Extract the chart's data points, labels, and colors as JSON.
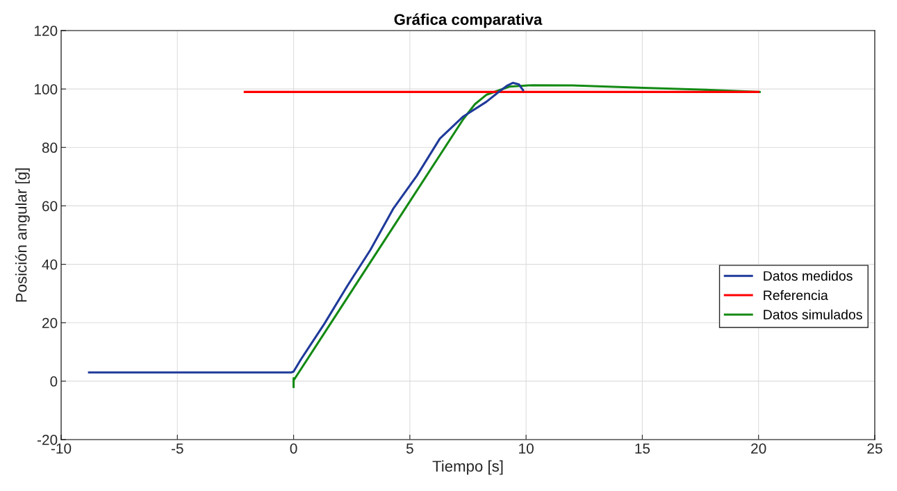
{
  "chart_data": {
    "type": "line",
    "title": "Gráfica comparativa",
    "xlabel": "Tiempo [s]",
    "ylabel": "Posición angular [g]",
    "xlim": [
      -10,
      25
    ],
    "xticks": [
      -10,
      -5,
      0,
      5,
      10,
      15,
      20,
      25
    ],
    "ylim": [
      -20,
      120
    ],
    "yticks": [
      -20,
      0,
      20,
      40,
      60,
      80,
      100,
      120
    ],
    "grid": true,
    "legend": "right",
    "line_style": "solid",
    "marker": "none",
    "series": [
      {
        "name": "Datos medidos",
        "color": "#1f3a9a",
        "x": [
          -8.8,
          -0.1,
          0,
          0.31,
          1.32,
          2.31,
          3.3,
          4.3,
          5.3,
          6.29,
          7.3,
          8.29,
          8.79,
          9.2,
          9.43,
          9.69,
          9.87
        ],
        "values": [
          3,
          3,
          3.3,
          7.4,
          19.6,
          32.6,
          44.9,
          59.2,
          70.3,
          83,
          90.6,
          95.6,
          98.8,
          101.2,
          102.1,
          101.6,
          99.6
        ]
      },
      {
        "name": "Referencia",
        "color": "#ff0000",
        "x": [
          -2.1,
          20
        ],
        "values": [
          99,
          99
        ]
      },
      {
        "name": "Datos simulados",
        "color": "#138a13",
        "x": [
          0,
          0,
          0.02,
          7.3,
          7.8,
          8.29,
          9.28,
          10.28,
          12,
          15.07,
          17.5,
          20.05
        ],
        "values": [
          -2,
          1,
          0.5,
          89.7,
          94.8,
          98,
          100.8,
          101.3,
          101.2,
          100.4,
          99.8,
          99
        ]
      }
    ]
  }
}
